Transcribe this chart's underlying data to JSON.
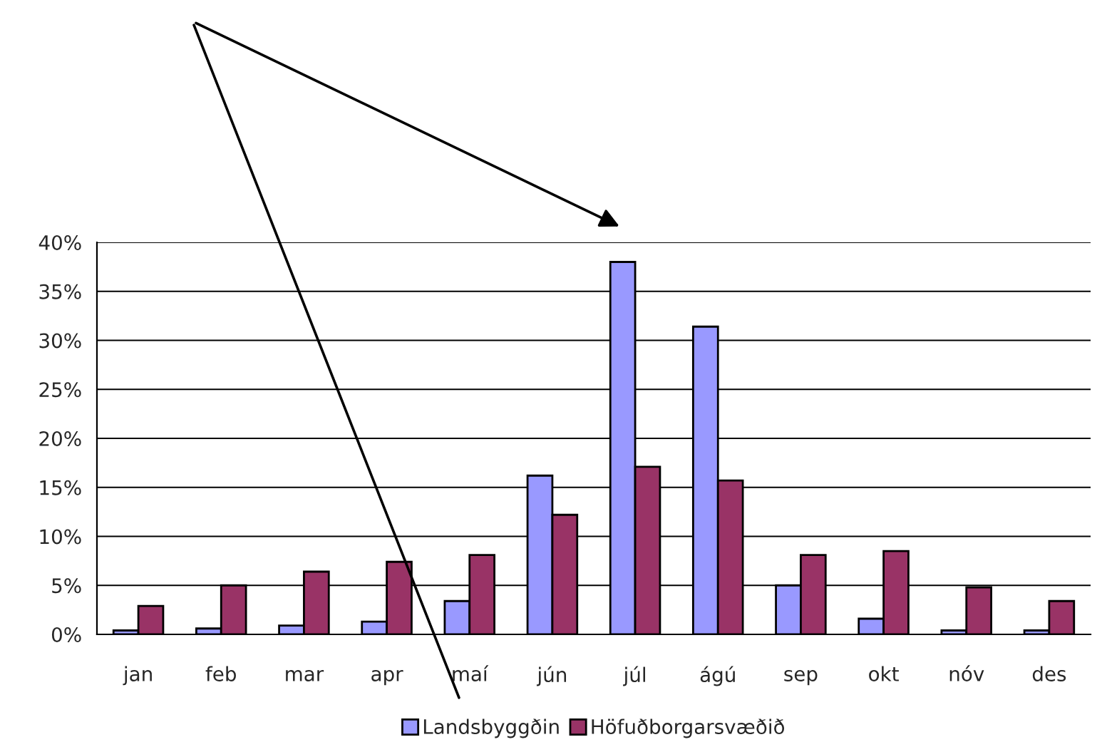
{
  "chart_data": {
    "type": "bar",
    "categories": [
      "jan",
      "feb",
      "mar",
      "apr",
      "maí",
      "jún",
      "júl",
      "ágú",
      "sep",
      "okt",
      "nóv",
      "des"
    ],
    "series": [
      {
        "name": "Landsbyggðin",
        "color": "#9999ff",
        "values": [
          0.4,
          0.6,
          0.9,
          1.3,
          3.4,
          16.2,
          38,
          31.4,
          5,
          1.6,
          0.4,
          0.4
        ]
      },
      {
        "name": "Höfuðborgarsvæðið",
        "color": "#993366",
        "values": [
          2.9,
          5,
          6.4,
          7.4,
          8.1,
          12.2,
          17.1,
          15.7,
          8.1,
          8.5,
          4.8,
          3.4
        ]
      }
    ],
    "ylim": [
      0,
      40
    ],
    "yticks": [
      {
        "value": 0,
        "label": "0%"
      },
      {
        "value": 5,
        "label": "5%"
      },
      {
        "value": 10,
        "label": "10%"
      },
      {
        "value": 15,
        "label": "15%"
      },
      {
        "value": 20,
        "label": "20%"
      },
      {
        "value": 25,
        "label": "25%"
      },
      {
        "value": 30,
        "label": "30%"
      },
      {
        "value": 35,
        "label": "35%"
      },
      {
        "value": 40,
        "label": "40%"
      }
    ],
    "grid": "y",
    "legend": "bottom"
  }
}
